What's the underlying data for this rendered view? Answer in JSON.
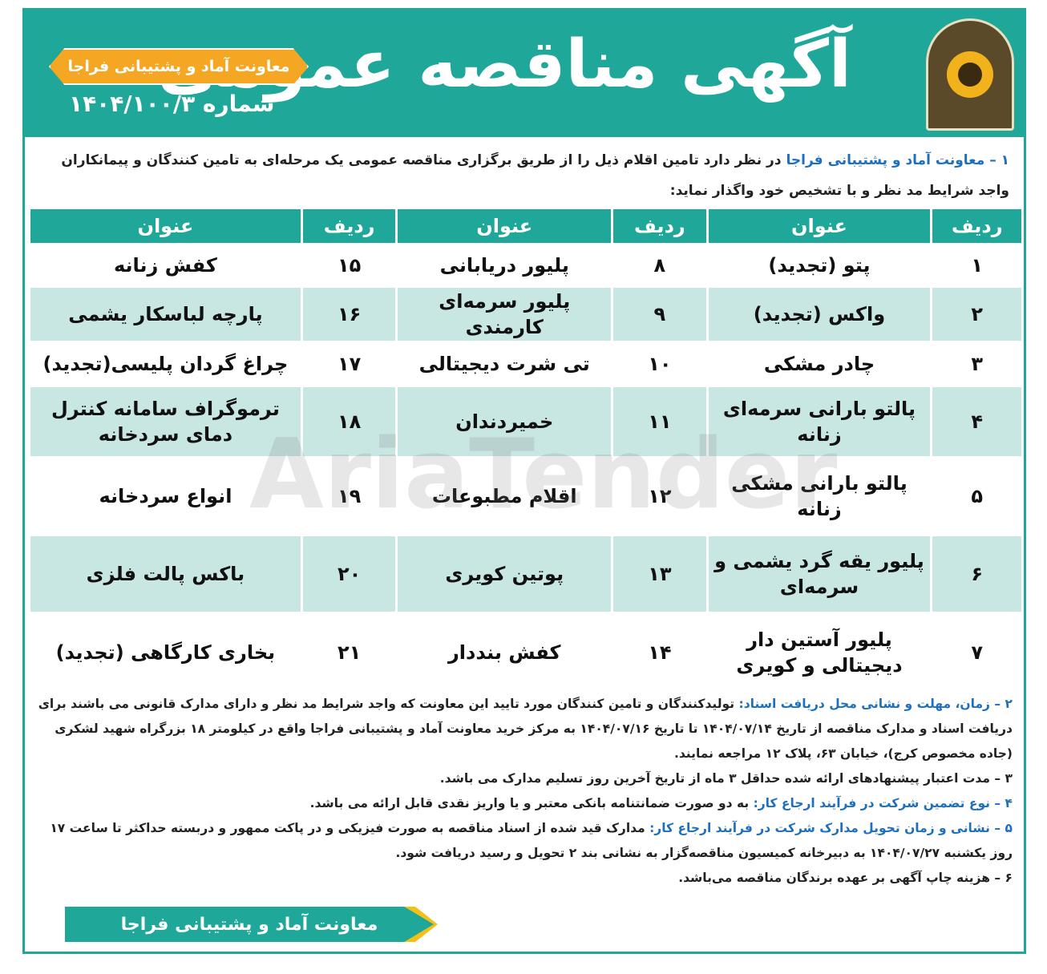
{
  "header": {
    "title": "آگهی مناقصه عمومی",
    "org_badge": "معاونت آماد و پشتیبانی فراجا",
    "number": "شماره ۱۴۰۴/۱۰۰/۳",
    "logo": "police-emblem"
  },
  "intro": {
    "org": "۱ – معاونت آماد و پشتیبانی فراجا",
    "text": " در نظر دارد تامین اقلام ذیل را از طریق برگزاری مناقصه عمومی یک مرحله‌ای به تامین کنندگان و پیمانکاران واجد شرایط مد نظر و با تشخیص خود واگذار نماید:"
  },
  "table": {
    "headers": [
      "ردیف",
      "عنوان",
      "ردیف",
      "عنوان",
      "ردیف",
      "عنوان"
    ],
    "rows": [
      [
        "۱",
        "پتو (تجدید)",
        "۸",
        "پلیور دریابانی",
        "۱۵",
        "کفش زنانه"
      ],
      [
        "۲",
        "واکس (تجدید)",
        "۹",
        "پلیور سرمه‌ای کارمندی",
        "۱۶",
        "پارچه لباسکار یشمی"
      ],
      [
        "۳",
        "چادر مشکی",
        "۱۰",
        "تی شرت دیجیتالی",
        "۱۷",
        "چراغ گردان پلیسی(تجدید)"
      ],
      [
        "۴",
        "پالتو بارانی سرمه‌ای زنانه",
        "۱۱",
        "خمیردندان",
        "۱۸",
        "ترموگراف سامانه کنترل دمای سردخانه"
      ],
      [
        "۵",
        "پالتو بارانی مشکی زنانه",
        "۱۲",
        "اقلام مطبوعات",
        "۱۹",
        "انواع سردخانه"
      ],
      [
        "۶",
        "پلیور یقه گرد یشمی و سرمه‌ای",
        "۱۳",
        "پوتین کویری",
        "۲۰",
        "باکس پالت فلزی"
      ],
      [
        "۷",
        "پلیور آستین دار دیجیتالی و کویری",
        "۱۴",
        "کفش بنددار",
        "۲۱",
        "بخاری کارگاهی (تجدید)"
      ]
    ]
  },
  "sections": [
    {
      "head": "۲ – زمان، مهلت و نشانی محل دریافت اسناد:",
      "text": " تولیدکنندگان و تامین کنندگان مورد تایید این معاونت که واجد شرایط مد نظر و دارای مدارک قانونی می باشند برای دریافت اسناد و مدارک مناقصه از تاریخ ۱۴۰۴/۰۷/۱۴ تا تاریخ ۱۴۰۴/۰۷/۱۶ به مرکز خرید معاونت آماد و پشتیبانی فراجا واقع در کیلومتر ۱۸ بزرگراه شهید لشکری (جاده مخصوص کرج)، خیابان ۶۳، پلاک ۱۲ مراجعه نمایند."
    },
    {
      "head": "",
      "text": "۳ – مدت اعتبار پیشنهادهای ارائه شده حداقل ۳ ماه از تاریخ آخرین روز تسلیم مدارک می باشد."
    },
    {
      "head": "۴ – نوع تضمین شرکت در فرآیند ارجاع کار:",
      "text": " به دو صورت ضمانتنامه بانکی معتبر و یا واریز نقدی قابل ارائه می باشد."
    },
    {
      "head": "۵ – نشانی و زمان تحویل مدارک شرکت در فرآیند ارجاع کار:",
      "text": " مدارک قید شده از اسناد مناقصه به صورت فیزیکی و در پاکت ممهور و دربسته حداکثر تا ساعت ۱۷ روز یکشنبه ۱۴۰۴/۰۷/۲۷ به دبیرخانه کمیسیون مناقصه‌گزار به نشانی بند ۲ تحویل و رسید دریافت شود."
    },
    {
      "head": "",
      "text": "۶ – هزینه چاپ آگهی بر عهده برندگان مناقصه می‌باشد."
    }
  ],
  "footer": {
    "org": "معاونت آماد و پشتیبانی فراجا"
  },
  "watermark": "AriaTender",
  "colors": {
    "primary": "#1fa89a",
    "accent": "#f5a623",
    "row_alt": "#c8e6e2",
    "highlight": "#1d6fc0"
  }
}
